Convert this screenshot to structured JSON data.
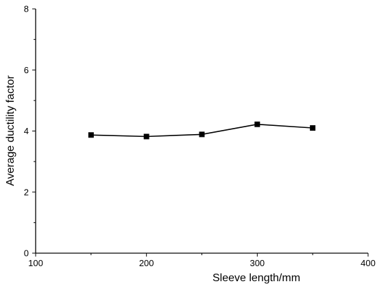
{
  "chart_data": {
    "type": "line",
    "title": "",
    "xlabel": "Sleeve length/mm",
    "ylabel": "Average ductility factor",
    "xlim": [
      100,
      400
    ],
    "ylim": [
      0,
      8
    ],
    "xticks": [
      100,
      200,
      300,
      400
    ],
    "yticks": [
      0,
      2,
      4,
      6,
      8
    ],
    "grid": false,
    "legend": "none",
    "series": [
      {
        "x": [
          150,
          200,
          250,
          300,
          350
        ],
        "y": [
          3.87,
          3.82,
          3.89,
          4.22,
          4.1
        ],
        "marker": "square",
        "color": "#000000"
      }
    ]
  }
}
